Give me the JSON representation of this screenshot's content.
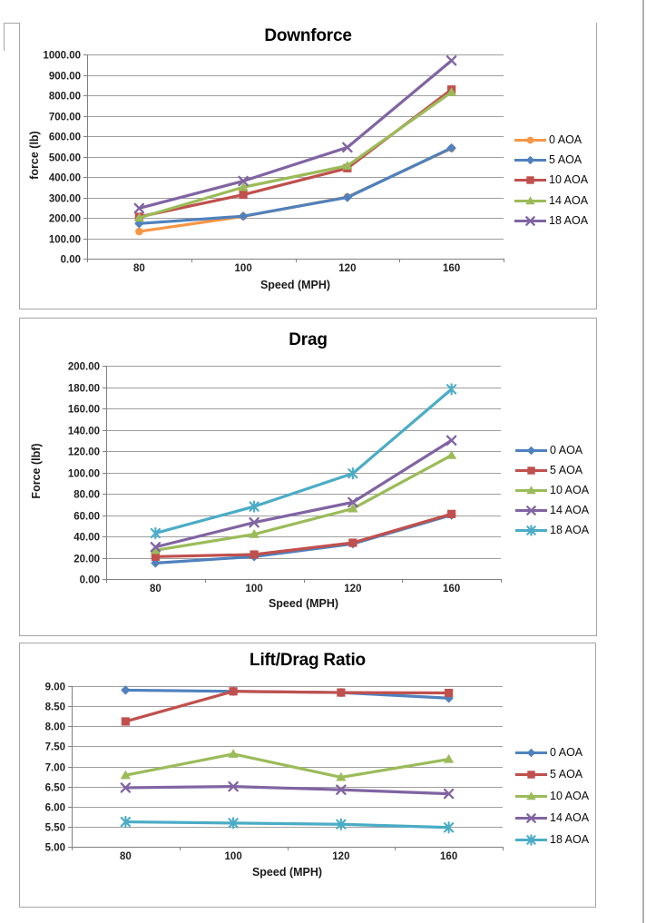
{
  "chart_data": [
    {
      "type": "line",
      "title": "Downforce",
      "xlabel": "Speed (MPH)",
      "ylabel": "force (lb)",
      "categories": [
        "80",
        "100",
        "120",
        "160"
      ],
      "ylim": [
        0,
        1000
      ],
      "ytick_step": 100,
      "y_tick_labels": [
        "1000.00",
        "900.00",
        "800.00",
        "700.00",
        "600.00",
        "500.00",
        "400.00",
        "300.00",
        "200.00",
        "100.00",
        "0.00"
      ],
      "grid": true,
      "legend_position": "right",
      "series": [
        {
          "name": "0 AOA",
          "color": "#F79646",
          "marker": "circle",
          "values": [
            133,
            207,
            302,
            540
          ]
        },
        {
          "name": "5 AOA",
          "color": "#4F81BD",
          "marker": "diamond",
          "values": [
            172,
            208,
            300,
            542
          ]
        },
        {
          "name": "10 AOA",
          "color": "#C0504D",
          "marker": "square",
          "values": [
            205,
            313,
            443,
            828
          ]
        },
        {
          "name": "14 AOA",
          "color": "#9BBB59",
          "marker": "triangle",
          "values": [
            200,
            350,
            455,
            815
          ]
        },
        {
          "name": "18 AOA",
          "color": "#8064A2",
          "marker": "x",
          "values": [
            247,
            380,
            545,
            970
          ]
        }
      ]
    },
    {
      "type": "line",
      "title": "Drag",
      "xlabel": "Speed (MPH)",
      "ylabel": "Force (lbf)",
      "categories": [
        "80",
        "100",
        "120",
        "160"
      ],
      "ylim": [
        0,
        200
      ],
      "ytick_step": 20,
      "y_tick_labels": [
        "200.00",
        "180.00",
        "160.00",
        "140.00",
        "120.00",
        "100.00",
        "80.00",
        "60.00",
        "40.00",
        "20.00",
        "0.00"
      ],
      "grid": true,
      "legend_position": "right",
      "series": [
        {
          "name": "0 AOA",
          "color": "#4F81BD",
          "marker": "diamond",
          "values": [
            15,
            21,
            33,
            60
          ]
        },
        {
          "name": "5 AOA",
          "color": "#C0504D",
          "marker": "square",
          "values": [
            21,
            23,
            34,
            61
          ]
        },
        {
          "name": "10 AOA",
          "color": "#9BBB59",
          "marker": "triangle",
          "values": [
            27,
            42,
            66,
            116
          ]
        },
        {
          "name": "14 AOA",
          "color": "#8064A2",
          "marker": "x",
          "values": [
            30,
            53,
            72,
            130
          ]
        },
        {
          "name": "18 AOA",
          "color": "#4BACC6",
          "marker": "asterisk",
          "values": [
            43,
            68,
            99,
            178
          ]
        }
      ]
    },
    {
      "type": "line",
      "title": "Lift/Drag Ratio",
      "xlabel": "Speed (MPH)",
      "ylabel": "",
      "categories": [
        "80",
        "100",
        "120",
        "160"
      ],
      "ylim": [
        5,
        9
      ],
      "ytick_step": 0.5,
      "y_tick_labels": [
        "9.00",
        "8.50",
        "8.00",
        "7.50",
        "7.00",
        "6.50",
        "6.00",
        "5.50",
        "5.00"
      ],
      "grid": true,
      "legend_position": "right",
      "series": [
        {
          "name": "0 AOA",
          "color": "#4F81BD",
          "marker": "diamond",
          "values": [
            8.9,
            8.87,
            8.84,
            8.7
          ]
        },
        {
          "name": "5 AOA",
          "color": "#C0504D",
          "marker": "square",
          "values": [
            8.12,
            8.87,
            8.84,
            8.83
          ]
        },
        {
          "name": "10 AOA",
          "color": "#9BBB59",
          "marker": "triangle",
          "values": [
            6.78,
            7.31,
            6.73,
            7.18
          ]
        },
        {
          "name": "14 AOA",
          "color": "#8064A2",
          "marker": "x",
          "values": [
            6.47,
            6.5,
            6.42,
            6.32
          ]
        },
        {
          "name": "18 AOA",
          "color": "#4BACC6",
          "marker": "asterisk",
          "values": [
            5.62,
            5.59,
            5.56,
            5.48
          ]
        }
      ]
    }
  ]
}
